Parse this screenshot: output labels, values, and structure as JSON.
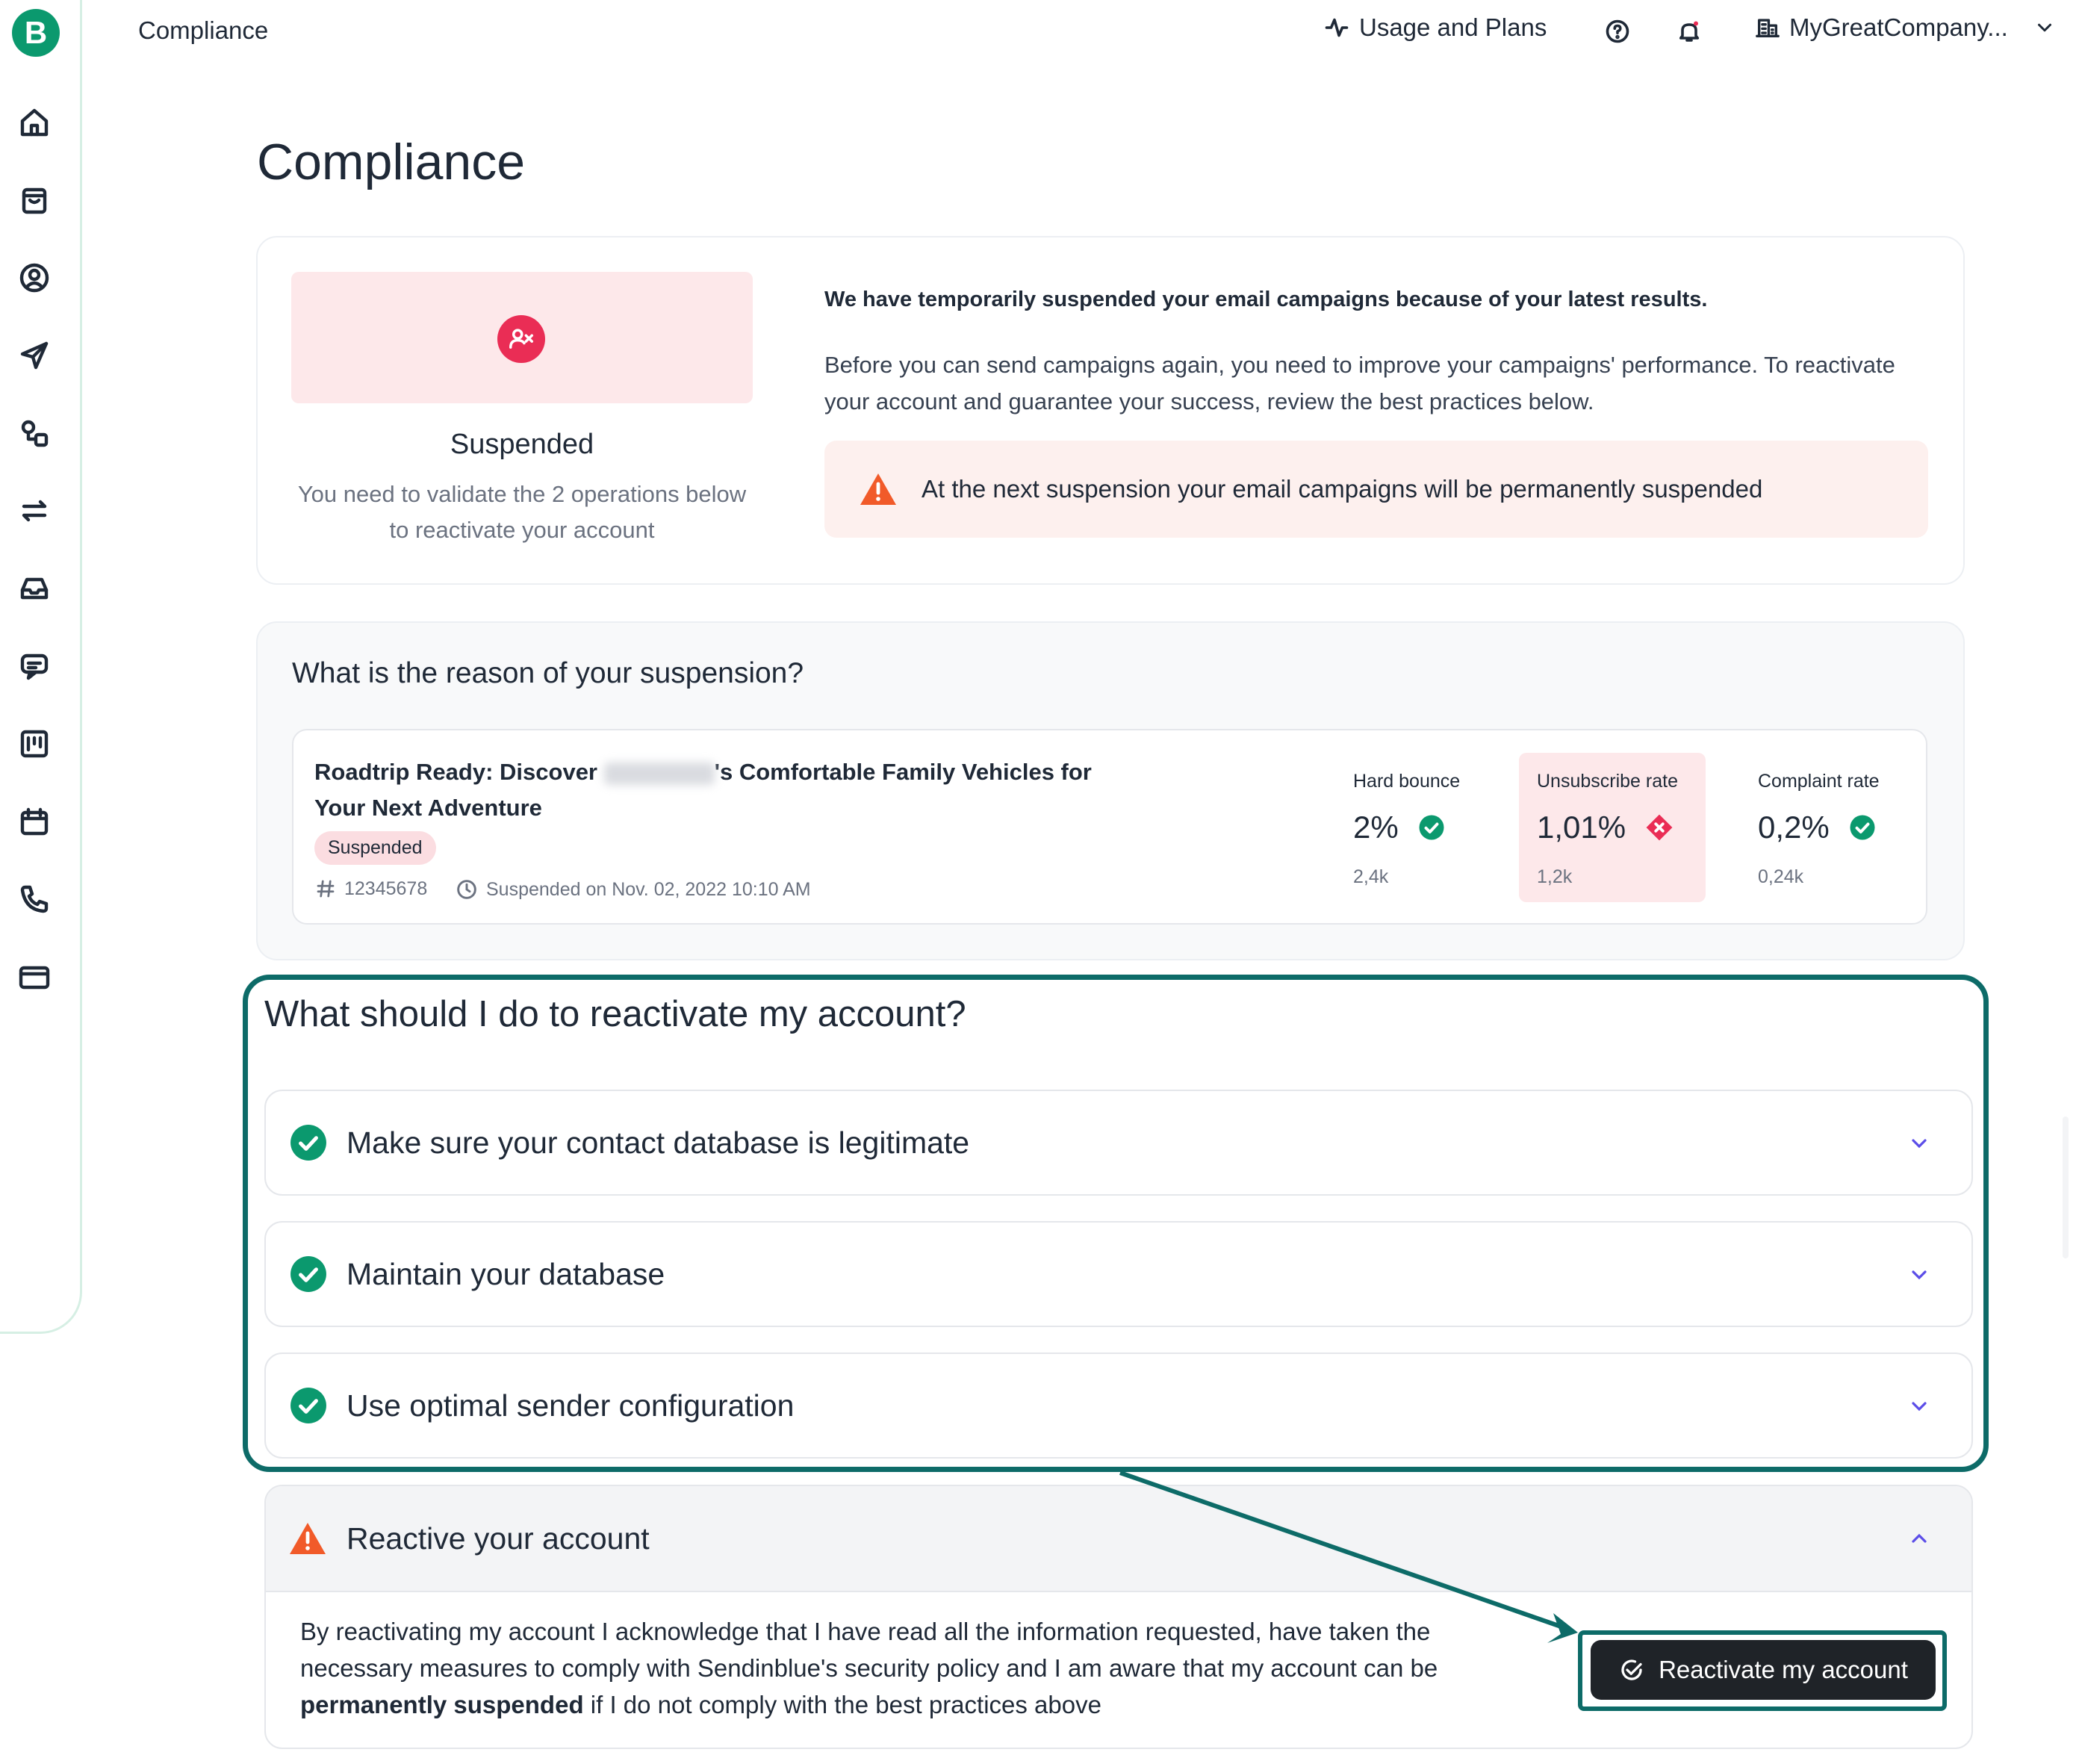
{
  "app": {
    "logo_letter": "B",
    "topbar_title": "Compliance",
    "usage_label": "Usage and Plans",
    "company_name": "MyGreatCompany...",
    "nav_icons": [
      "home-icon",
      "cart-icon",
      "contacts-icon",
      "send-icon",
      "automation-icon",
      "sync-icon",
      "inbox-icon",
      "chat-icon",
      "board-icon",
      "calendar-icon",
      "phone-icon",
      "billing-icon"
    ]
  },
  "page": {
    "title": "Compliance"
  },
  "summary": {
    "status_title": "Suspended",
    "status_desc": "You need to validate the 2 operations below to reactivate your account",
    "heading": "We have temporarily suspended your email campaigns because of your latest results.",
    "text": "Before you can send campaigns again, you need to improve your campaigns' performance. To reactivate your account and guarantee your success, review the best practices below.",
    "warning": "At the next suspension your email campaigns will be permanently suspended"
  },
  "reason": {
    "title": "What is the reason of your suspension?",
    "campaign": {
      "title_before": "Roadtrip Ready: Discover",
      "title_after": "'s Comfortable Family Vehicles for Your Next Adventure",
      "badge": "Suspended",
      "id": "12345678",
      "suspended_on": "Suspended on Nov. 02, 2022 10:10 AM"
    },
    "metrics": [
      {
        "label": "Hard bounce",
        "value": "2%",
        "sub": "2,4k",
        "status": "ok"
      },
      {
        "label": "Unsubscribe rate",
        "value": "1,01%",
        "sub": "1,2k",
        "status": "bad"
      },
      {
        "label": "Complaint rate",
        "value": "0,2%",
        "sub": "0,24k",
        "status": "ok"
      }
    ]
  },
  "reactivate": {
    "title": "What should I do to reactivate my account?",
    "steps": [
      {
        "label": "Make sure your contact database is legitimate"
      },
      {
        "label": "Maintain your database"
      },
      {
        "label": "Use optimal sender configuration"
      }
    ],
    "final": {
      "label": "Reactive your account",
      "text_before": "By reactivating my account I acknowledge that I have read all the information requested, have taken the necessary measures to comply with Sendinblue's security policy and I am aware that my account can be ",
      "text_bold": "permanently suspended",
      "text_after": " if I do not comply with the best practices above",
      "button": "Reactivate my account"
    }
  },
  "colors": {
    "brand": "#0b996e",
    "danger": "#ea2d55",
    "warning": "#f15a29",
    "highlight": "#0d6b68"
  }
}
